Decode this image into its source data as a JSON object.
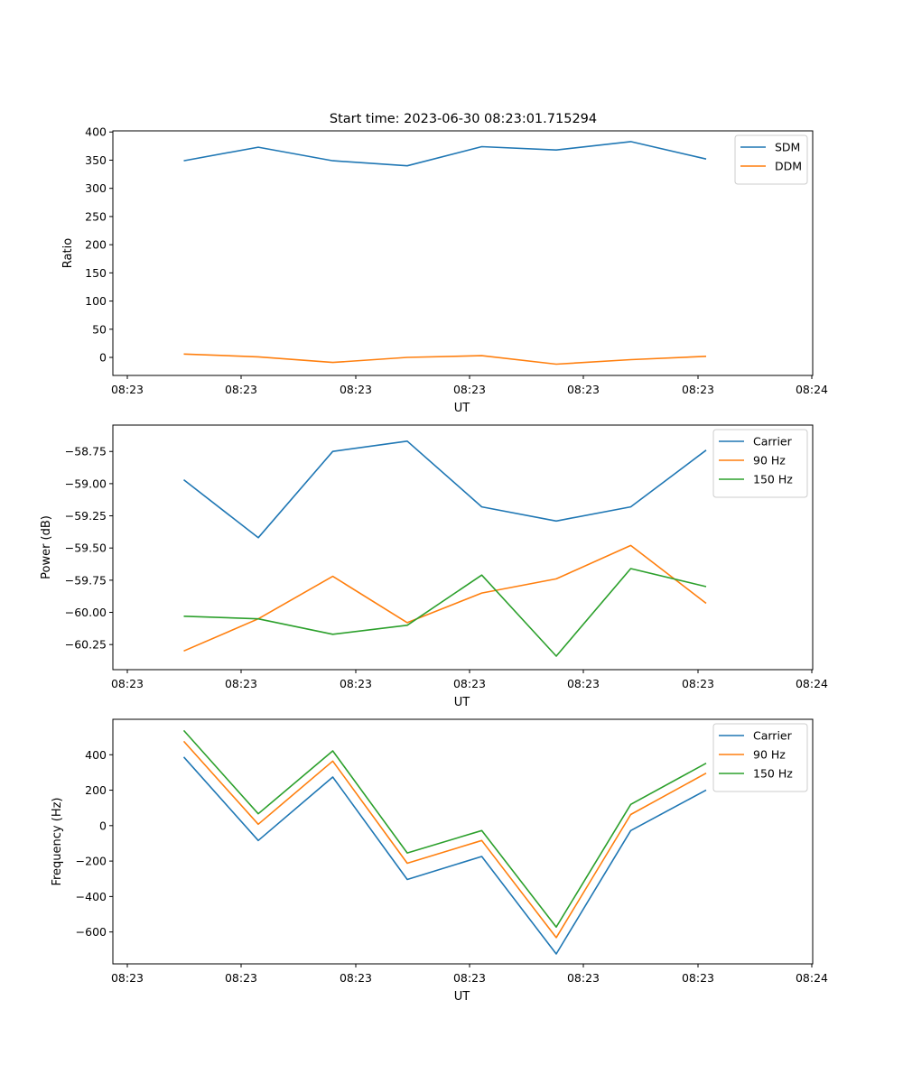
{
  "figure": {
    "title": "Start time: 2023-06-30 08:23:01.715294"
  },
  "chart_data": [
    {
      "type": "line",
      "xlabel": "UT",
      "ylabel": "Ratio",
      "x_tick_labels": [
        "08:23",
        "08:23",
        "08:23",
        "08:23",
        "08:23",
        "08:23",
        "08:24"
      ],
      "y_ticks": [
        0,
        50,
        100,
        150,
        200,
        250,
        300,
        350,
        400
      ],
      "y_tick_labels": [
        "0",
        "50",
        "100",
        "150",
        "200",
        "250",
        "300",
        "350",
        "400"
      ],
      "ylim": [
        -32,
        402
      ],
      "grid": false,
      "legend": "top-right",
      "series": [
        {
          "name": "SDM",
          "color": "#1f77b4",
          "values": [
            349,
            373,
            349,
            340,
            374,
            368,
            383,
            352
          ]
        },
        {
          "name": "DDM",
          "color": "#ff7f0e",
          "values": [
            6,
            1,
            -9,
            0,
            3,
            -12,
            -4,
            2
          ]
        }
      ]
    },
    {
      "type": "line",
      "xlabel": "UT",
      "ylabel": "Power (dB)",
      "x_tick_labels": [
        "08:23",
        "08:23",
        "08:23",
        "08:23",
        "08:23",
        "08:23",
        "08:24"
      ],
      "y_ticks": [
        -60.25,
        -60.0,
        -59.75,
        -59.5,
        -59.25,
        -59.0,
        -58.75
      ],
      "y_tick_labels": [
        "−60.25",
        "−60.00",
        "−59.75",
        "−59.50",
        "−59.25",
        "−59.00",
        "−58.75"
      ],
      "ylim": [
        -60.445,
        -58.545
      ],
      "grid": false,
      "legend": "top-right",
      "series": [
        {
          "name": "Carrier",
          "color": "#1f77b4",
          "values": [
            -58.97,
            -59.42,
            -58.75,
            -58.67,
            -59.18,
            -59.29,
            -59.18,
            -58.74
          ]
        },
        {
          "name": "90 Hz",
          "color": "#ff7f0e",
          "values": [
            -60.3,
            -60.05,
            -59.72,
            -60.08,
            -59.85,
            -59.74,
            -59.48,
            -59.93
          ]
        },
        {
          "name": "150 Hz",
          "color": "#2ca02c",
          "values": [
            -60.03,
            -60.05,
            -60.17,
            -60.1,
            -59.71,
            -60.34,
            -59.66,
            -59.8
          ]
        }
      ]
    },
    {
      "type": "line",
      "xlabel": "UT",
      "ylabel": "Frequency (Hz)",
      "x_tick_labels": [
        "08:23",
        "08:23",
        "08:23",
        "08:23",
        "08:23",
        "08:23",
        "08:24"
      ],
      "y_ticks": [
        -600,
        -400,
        -200,
        0,
        200,
        400
      ],
      "y_tick_labels": [
        "−600",
        "−400",
        "−200",
        "0",
        "200",
        "400"
      ],
      "ylim": [
        -780,
        600
      ],
      "grid": false,
      "legend": "top-right",
      "series": [
        {
          "name": "Carrier",
          "color": "#1f77b4",
          "values": [
            387,
            -84,
            274,
            -304,
            -174,
            -724,
            -28,
            201
          ]
        },
        {
          "name": "90 Hz",
          "color": "#ff7f0e",
          "values": [
            476,
            8,
            364,
            -212,
            -84,
            -632,
            63,
            296
          ]
        },
        {
          "name": "150 Hz",
          "color": "#2ca02c",
          "values": [
            537,
            67,
            422,
            -154,
            -28,
            -572,
            120,
            352
          ]
        }
      ]
    }
  ]
}
